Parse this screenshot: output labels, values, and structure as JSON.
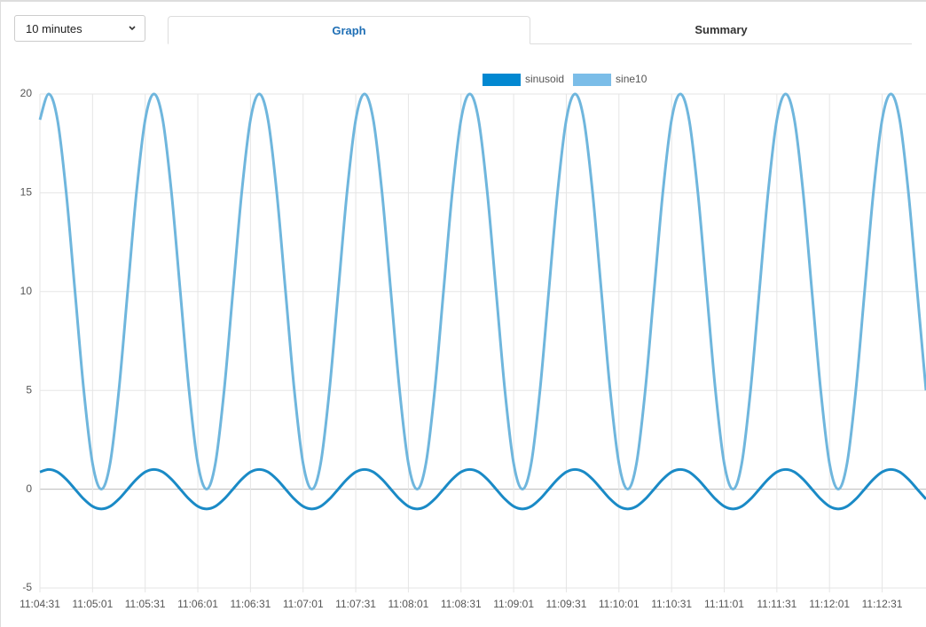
{
  "controls": {
    "range_select": "10 minutes",
    "tabs": [
      "Graph",
      "Summary"
    ]
  },
  "chart_data": {
    "type": "line",
    "x": [
      "11:04:31",
      "11:04:36",
      "11:04:41",
      "11:04:46",
      "11:04:51",
      "11:04:56",
      "11:05:01",
      "11:05:06",
      "11:05:11",
      "11:05:16",
      "11:05:21",
      "11:05:26",
      "11:05:31",
      "11:05:36",
      "11:05:41",
      "11:05:46",
      "11:05:51",
      "11:05:56",
      "11:06:01",
      "11:06:06",
      "11:06:11",
      "11:06:16",
      "11:06:21",
      "11:06:26",
      "11:06:31",
      "11:06:36",
      "11:06:41",
      "11:06:46",
      "11:06:51",
      "11:06:56",
      "11:07:01",
      "11:07:06",
      "11:07:11",
      "11:07:16",
      "11:07:21",
      "11:07:26",
      "11:07:31",
      "11:07:36",
      "11:07:41",
      "11:07:46",
      "11:07:51",
      "11:07:56",
      "11:08:01",
      "11:08:06",
      "11:08:11",
      "11:08:16",
      "11:08:21",
      "11:08:26",
      "11:08:31",
      "11:08:36",
      "11:08:41",
      "11:08:46",
      "11:08:51",
      "11:08:56",
      "11:09:01",
      "11:09:06",
      "11:09:11",
      "11:09:16",
      "11:09:21",
      "11:09:26",
      "11:09:31",
      "11:09:36",
      "11:09:41",
      "11:09:46",
      "11:09:51",
      "11:09:56",
      "11:10:01",
      "11:10:06",
      "11:10:11",
      "11:10:16",
      "11:10:21",
      "11:10:26",
      "11:10:31",
      "11:10:36",
      "11:10:41",
      "11:10:46",
      "11:10:51",
      "11:10:56",
      "11:11:01",
      "11:11:06",
      "11:11:11",
      "11:11:16",
      "11:11:21",
      "11:11:26",
      "11:11:31",
      "11:11:36",
      "11:11:41",
      "11:11:46",
      "11:11:51",
      "11:11:56",
      "11:12:01",
      "11:12:06",
      "11:12:11",
      "11:12:16",
      "11:12:21",
      "11:12:26",
      "11:12:31",
      "11:12:36",
      "11:12:41",
      "11:12:46",
      "11:12:51",
      "11:12:56"
    ],
    "series": [
      {
        "name": "sinusoid",
        "color": "#1a8ac6",
        "legend_color": "#0288d1",
        "values": [
          0.87,
          1,
          0.87,
          0.5,
          0,
          -0.5,
          -0.87,
          -1,
          -0.87,
          -0.5,
          0,
          0.5,
          0.87,
          1,
          0.87,
          0.5,
          0,
          -0.5,
          -0.87,
          -1,
          -0.87,
          -0.5,
          0,
          0.5,
          0.87,
          1,
          0.87,
          0.5,
          0,
          -0.5,
          -0.87,
          -1,
          -0.87,
          -0.5,
          0,
          0.5,
          0.87,
          1,
          0.87,
          0.5,
          0,
          -0.5,
          -0.87,
          -1,
          -0.87,
          -0.5,
          0,
          0.5,
          0.87,
          1,
          0.87,
          0.5,
          0,
          -0.5,
          -0.87,
          -1,
          -0.87,
          -0.5,
          0,
          0.5,
          0.87,
          1,
          0.87,
          0.5,
          0,
          -0.5,
          -0.87,
          -1,
          -0.87,
          -0.5,
          0,
          0.5,
          0.87,
          1,
          0.87,
          0.5,
          0,
          -0.5,
          -0.87,
          -1,
          -0.87,
          -0.5,
          0,
          0.5,
          0.87,
          1,
          0.87,
          0.5,
          0,
          -0.5,
          -0.87,
          -1,
          -0.87,
          -0.5,
          0,
          0.5,
          0.87,
          1,
          0.87,
          0.5,
          0,
          -0.5
        ]
      },
      {
        "name": "sine10",
        "color": "#6fb6dd",
        "legend_color": "#7bbde8",
        "values": [
          18.7,
          20,
          18.7,
          15,
          10,
          5,
          1.3,
          0,
          1.3,
          5,
          10,
          15,
          18.7,
          20,
          18.7,
          15,
          10,
          5,
          1.3,
          0,
          1.3,
          5,
          10,
          15,
          18.7,
          20,
          18.7,
          15,
          10,
          5,
          1.3,
          0,
          1.3,
          5,
          10,
          15,
          18.7,
          20,
          18.7,
          15,
          10,
          5,
          1.3,
          0,
          1.3,
          5,
          10,
          15,
          18.7,
          20,
          18.7,
          15,
          10,
          5,
          1.3,
          0,
          1.3,
          5,
          10,
          15,
          18.7,
          20,
          18.7,
          15,
          10,
          5,
          1.3,
          0,
          1.3,
          5,
          10,
          15,
          18.7,
          20,
          18.7,
          15,
          10,
          5,
          1.3,
          0,
          1.3,
          5,
          10,
          15,
          18.7,
          20,
          18.7,
          15,
          10,
          5,
          1.3,
          0,
          1.3,
          5,
          10,
          15,
          18.7,
          20,
          18.7,
          15,
          10,
          5
        ]
      }
    ],
    "xlim": [
      "11:04:31",
      "11:12:56"
    ],
    "xticks": [
      "11:04:31",
      "11:05:01",
      "11:05:31",
      "11:06:01",
      "11:06:31",
      "11:07:01",
      "11:07:31",
      "11:08:01",
      "11:08:31",
      "11:09:01",
      "11:09:31",
      "11:10:01",
      "11:10:31",
      "11:11:01",
      "11:11:31",
      "11:12:01",
      "11:12:31"
    ],
    "ylim": [
      -5,
      20
    ],
    "yticks": [
      -5,
      0,
      5,
      10,
      15,
      20
    ],
    "grid": true
  }
}
